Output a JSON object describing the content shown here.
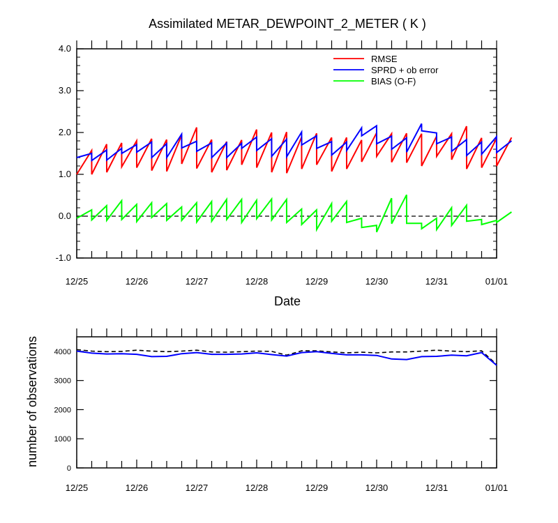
{
  "chart_data": [
    {
      "type": "line",
      "title": "Assimilated METAR_DEWPOINT_2_METER ( K )",
      "xlabel": "Date",
      "ylabel": "",
      "x_ticks": [
        "12/25",
        "12/26",
        "12/27",
        "12/28",
        "12/29",
        "12/30",
        "12/31",
        "01/01"
      ],
      "xlim": [
        0,
        7
      ],
      "ylim": [
        -1.0,
        4.0
      ],
      "y_ticks": [
        "-1.0",
        "0.0",
        "1.0",
        "2.0",
        "3.0",
        "4.0"
      ],
      "y_tick_values": [
        -1,
        0,
        1,
        2,
        3,
        4
      ],
      "grid": false,
      "legend_position": "top-right",
      "reference_line": 0,
      "cycle_days": 0.25,
      "series": [
        {
          "name": "RMSE",
          "color": "#ff0000",
          "pairs": [
            [
              1.0,
              1.57
            ],
            [
              1.0,
              1.72
            ],
            [
              1.05,
              1.75
            ],
            [
              1.18,
              1.8
            ],
            [
              1.16,
              1.85
            ],
            [
              1.09,
              1.83
            ],
            [
              1.07,
              1.94
            ],
            [
              1.25,
              2.12
            ],
            [
              1.14,
              1.83
            ],
            [
              1.05,
              1.78
            ],
            [
              1.1,
              1.82
            ],
            [
              1.23,
              2.07
            ],
            [
              1.16,
              2.0
            ],
            [
              1.05,
              2.01
            ],
            [
              1.03,
              1.89
            ],
            [
              1.13,
              1.98
            ],
            [
              1.23,
              1.88
            ],
            [
              1.07,
              1.88
            ],
            [
              1.13,
              1.82
            ],
            [
              1.3,
              1.99
            ],
            [
              1.43,
              1.97
            ],
            [
              1.29,
              1.98
            ],
            [
              1.28,
              1.97
            ],
            [
              1.2,
              1.91
            ],
            [
              1.43,
              1.97
            ],
            [
              1.35,
              2.15
            ],
            [
              1.13,
              1.87
            ],
            [
              1.16,
              1.86
            ],
            [
              1.2,
              1.88
            ]
          ]
        },
        {
          "name": "SPRD + ob error",
          "color": "#0000ff",
          "pairs": [
            [
              1.4,
              1.5
            ],
            [
              1.33,
              1.58
            ],
            [
              1.34,
              1.62
            ],
            [
              1.5,
              1.71
            ],
            [
              1.53,
              1.77
            ],
            [
              1.4,
              1.73
            ],
            [
              1.4,
              1.96
            ],
            [
              1.63,
              1.79
            ],
            [
              1.55,
              1.75
            ],
            [
              1.4,
              1.75
            ],
            [
              1.4,
              1.74
            ],
            [
              1.62,
              1.89
            ],
            [
              1.57,
              1.85
            ],
            [
              1.43,
              1.84
            ],
            [
              1.42,
              2.01
            ],
            [
              1.7,
              1.92
            ],
            [
              1.62,
              1.78
            ],
            [
              1.46,
              1.77
            ],
            [
              1.57,
              2.11
            ],
            [
              1.92,
              2.16
            ],
            [
              1.73,
              1.91
            ],
            [
              1.6,
              1.87
            ],
            [
              1.53,
              2.21
            ],
            [
              2.04,
              1.99
            ],
            [
              1.73,
              1.89
            ],
            [
              1.55,
              1.83
            ],
            [
              1.45,
              1.77
            ],
            [
              1.48,
              1.9
            ],
            [
              1.52,
              1.8
            ]
          ]
        },
        {
          "name": "BIAS (O-F)",
          "color": "#00ff00",
          "pairs": [
            [
              -0.05,
              0.15
            ],
            [
              -0.09,
              0.25
            ],
            [
              -0.1,
              0.37
            ],
            [
              -0.08,
              0.28
            ],
            [
              -0.13,
              0.32
            ],
            [
              -0.03,
              0.3
            ],
            [
              -0.1,
              0.22
            ],
            [
              -0.1,
              0.32
            ],
            [
              -0.14,
              0.35
            ],
            [
              -0.12,
              0.4
            ],
            [
              -0.08,
              0.4
            ],
            [
              -0.15,
              0.38
            ],
            [
              -0.06,
              0.41
            ],
            [
              -0.09,
              0.4
            ],
            [
              -0.15,
              0.17
            ],
            [
              -0.2,
              0.15
            ],
            [
              -0.32,
              0.3
            ],
            [
              -0.12,
              0.35
            ],
            [
              -0.15,
              -0.05
            ],
            [
              -0.27,
              -0.22
            ],
            [
              -0.38,
              0.43
            ],
            [
              -0.18,
              0.51
            ],
            [
              -0.17,
              -0.17
            ],
            [
              -0.3,
              -0.05
            ],
            [
              -0.32,
              0.2
            ],
            [
              -0.22,
              0.26
            ],
            [
              -0.12,
              -0.08
            ],
            [
              -0.2,
              -0.1
            ],
            [
              -0.15,
              0.1
            ]
          ]
        }
      ]
    },
    {
      "type": "line",
      "xlabel": "",
      "ylabel": "number of observations",
      "x_ticks": [
        "12/25",
        "12/26",
        "12/27",
        "12/28",
        "12/29",
        "12/30",
        "12/31",
        "01/01"
      ],
      "xlim": [
        0,
        7
      ],
      "ylim": [
        0,
        4500
      ],
      "y_ticks": [
        "0",
        "1000",
        "2000",
        "3000",
        "4000"
      ],
      "y_tick_values": [
        0,
        1000,
        2000,
        3000,
        4000
      ],
      "grid": false,
      "series": [
        {
          "line_style": "dashed",
          "color": "#000000",
          "x": [
            0,
            0.25,
            0.5,
            0.75,
            1.0,
            1.25,
            1.5,
            1.75,
            2.0,
            2.25,
            2.5,
            2.75,
            3.0,
            3.25,
            3.5,
            3.75,
            4.0,
            4.25,
            4.5,
            4.75,
            5.0,
            5.25,
            5.5,
            5.75,
            6.0,
            6.25,
            6.5,
            6.75,
            7.0
          ],
          "values": [
            4060,
            4010,
            3990,
            4000,
            4040,
            4010,
            3990,
            4010,
            4040,
            3980,
            3970,
            3990,
            4010,
            4000,
            3870,
            4020,
            4020,
            3980,
            3950,
            3970,
            3950,
            3980,
            3980,
            4010,
            4040,
            4010,
            3990,
            4020,
            3550
          ]
        },
        {
          "line_style": "solid",
          "color": "#0000ff",
          "x": [
            0,
            0.25,
            0.5,
            0.75,
            1.0,
            1.25,
            1.5,
            1.75,
            2.0,
            2.25,
            2.5,
            2.75,
            3.0,
            3.25,
            3.5,
            3.75,
            4.0,
            4.25,
            4.5,
            4.75,
            5.0,
            5.25,
            5.5,
            5.75,
            6.0,
            6.25,
            6.5,
            6.75,
            7.0
          ],
          "values": [
            4010,
            3940,
            3910,
            3920,
            3900,
            3820,
            3830,
            3920,
            3960,
            3900,
            3900,
            3910,
            3950,
            3890,
            3840,
            3960,
            3990,
            3930,
            3880,
            3880,
            3860,
            3740,
            3720,
            3820,
            3830,
            3870,
            3850,
            3960,
            3520
          ]
        }
      ]
    }
  ]
}
